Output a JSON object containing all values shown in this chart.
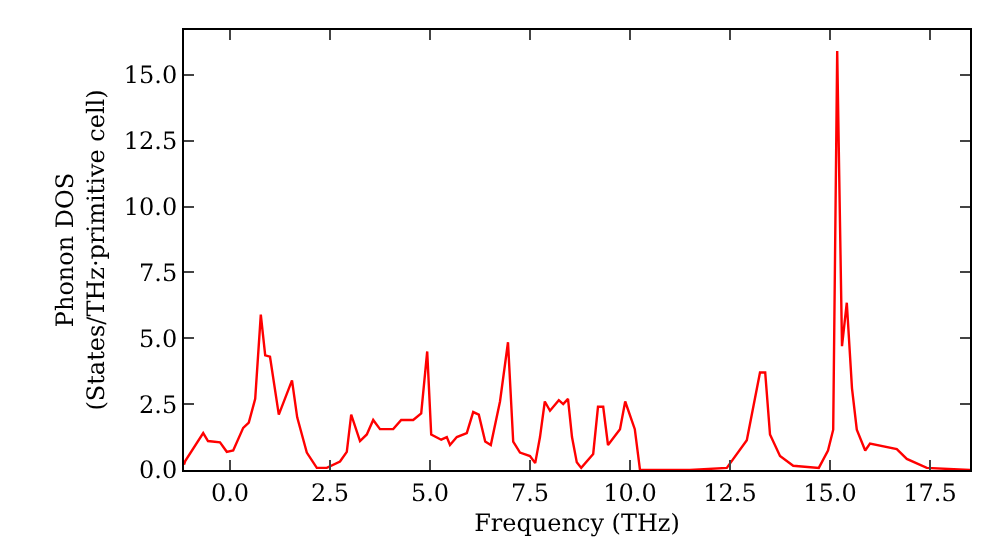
{
  "chart_data": {
    "type": "line",
    "xlabel": "Frequency (THz)",
    "ylabel": "Phonon DOS\n(States/THz·primitive cell)",
    "x": [
      -1.15,
      -1.12,
      -0.67,
      -0.55,
      -0.25,
      -0.08,
      0.08,
      0.33,
      0.47,
      0.63,
      0.77,
      0.88,
      1.0,
      1.22,
      1.55,
      1.68,
      1.92,
      2.17,
      2.42,
      2.75,
      2.92,
      3.03,
      3.25,
      3.42,
      3.58,
      3.75,
      4.08,
      4.28,
      4.58,
      4.78,
      4.93,
      5.03,
      5.28,
      5.42,
      5.5,
      5.67,
      5.92,
      6.08,
      6.22,
      6.38,
      6.52,
      6.75,
      6.95,
      7.08,
      7.25,
      7.5,
      7.63,
      7.75,
      7.87,
      8.0,
      8.22,
      8.33,
      8.45,
      8.55,
      8.67,
      8.78,
      9.08,
      9.2,
      9.33,
      9.45,
      9.75,
      9.88,
      10.12,
      10.25,
      11.5,
      12.42,
      12.92,
      13.25,
      13.38,
      13.5,
      13.75,
      14.08,
      14.72,
      14.95,
      15.08,
      15.18,
      15.3,
      15.42,
      15.55,
      15.67,
      15.88,
      16.0,
      16.67,
      16.92,
      17.42,
      18.5
    ],
    "series": [
      {
        "color": "#ff0000",
        "values": [
          0.2,
          0.34,
          1.4,
          1.1,
          1.05,
          0.69,
          0.74,
          1.6,
          1.8,
          2.7,
          5.9,
          4.35,
          4.3,
          2.1,
          3.4,
          2.0,
          0.66,
          0.08,
          0.08,
          0.32,
          0.69,
          2.1,
          1.1,
          1.35,
          1.9,
          1.55,
          1.55,
          1.9,
          1.9,
          2.15,
          4.5,
          1.35,
          1.15,
          1.25,
          0.95,
          1.25,
          1.4,
          2.2,
          2.1,
          1.08,
          0.95,
          2.6,
          4.85,
          1.08,
          0.66,
          0.53,
          0.26,
          1.25,
          2.6,
          2.25,
          2.65,
          2.5,
          2.7,
          1.25,
          0.29,
          0.08,
          0.61,
          2.4,
          2.4,
          0.95,
          1.55,
          2.6,
          1.55,
          0.0,
          0.0,
          0.08,
          1.13,
          3.7,
          3.7,
          1.35,
          0.53,
          0.16,
          0.08,
          0.74,
          1.53,
          15.9,
          4.7,
          6.35,
          3.1,
          1.53,
          0.74,
          1.0,
          0.79,
          0.42,
          0.08,
          0.0
        ]
      }
    ],
    "xlim": [
      -1.15,
      18.5
    ],
    "ylim": [
      0,
      16.7
    ],
    "xticks": [
      {
        "value": 0,
        "label": "0.0"
      },
      2.5,
      {
        "value": 5,
        "label": "5.0"
      },
      7.5,
      {
        "value": 10,
        "label": "10.0"
      },
      12.5,
      {
        "value": 15,
        "label": "15.0"
      },
      17.5
    ],
    "yticks": [
      {
        "value": 0,
        "label": "0.0"
      },
      2.5,
      {
        "value": 5,
        "label": "5.0"
      },
      7.5,
      {
        "value": 10,
        "label": "10.0"
      },
      12.5,
      {
        "value": 15,
        "label": "15.0"
      }
    ],
    "marker": "none",
    "line_style": "solid"
  }
}
